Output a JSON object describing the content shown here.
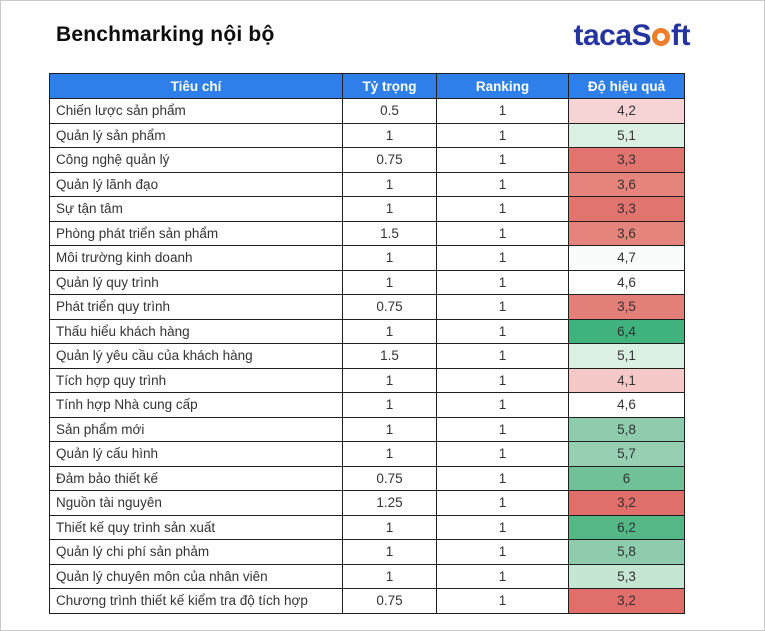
{
  "page": {
    "title": "Benchmarking nội bộ"
  },
  "logo": {
    "text_before_o": "tacaS",
    "text_after_o": "ft",
    "navy_color": "#25349E",
    "orange_color": "#EE7D2E"
  },
  "table": {
    "header_bg": "#2E7FE9",
    "headers": [
      "Tiêu chí",
      "Tỷ trọng",
      "Ranking",
      "Độ hiệu quả"
    ],
    "rows": [
      {
        "criteria": "Chiến lược sản phẩm",
        "weight": "0.5",
        "ranking": "1",
        "effectiveness": "4,2",
        "eff_color": "#F6D4D6"
      },
      {
        "criteria": "Quản lý sản phẩm",
        "weight": "1",
        "ranking": "1",
        "effectiveness": "5,1",
        "eff_color": "#DBF0E3"
      },
      {
        "criteria": "Công nghệ quản lý",
        "weight": "0.75",
        "ranking": "1",
        "effectiveness": "3,3",
        "eff_color": "#E1746F"
      },
      {
        "criteria": "Quản lý lãnh đạo",
        "weight": "1",
        "ranking": "1",
        "effectiveness": "3,6",
        "eff_color": "#E4847C"
      },
      {
        "criteria": "Sự tận tâm",
        "weight": "1",
        "ranking": "1",
        "effectiveness": "3,3",
        "eff_color": "#E1746F"
      },
      {
        "criteria": "Phòng phát triển sản phẩm",
        "weight": "1.5",
        "ranking": "1",
        "effectiveness": "3,6",
        "eff_color": "#E4847C"
      },
      {
        "criteria": "Môi trường kinh doanh",
        "weight": "1",
        "ranking": "1",
        "effectiveness": "4,7",
        "eff_color": "#F9FCFB"
      },
      {
        "criteria": "Quản lý quy trình",
        "weight": "1",
        "ranking": "1",
        "effectiveness": "4,6",
        "eff_color": "#FFFFFF"
      },
      {
        "criteria": "Phát triển quy trình",
        "weight": "0.75",
        "ranking": "1",
        "effectiveness": "3,5",
        "eff_color": "#E37F79"
      },
      {
        "criteria": "Thấu hiểu khách hàng",
        "weight": "1",
        "ranking": "1",
        "effectiveness": "6,4",
        "eff_color": "#3FB27D"
      },
      {
        "criteria": "Quản lý yêu cầu của khách hàng",
        "weight": "1.5",
        "ranking": "1",
        "effectiveness": "5,1",
        "eff_color": "#DBF0E3"
      },
      {
        "criteria": "Tích hợp quy trình",
        "weight": "1",
        "ranking": "1",
        "effectiveness": "4,1",
        "eff_color": "#F5C9C8"
      },
      {
        "criteria": "Tính hợp Nhà cung cấp",
        "weight": "1",
        "ranking": "1",
        "effectiveness": "4,6",
        "eff_color": "#FFFFFF"
      },
      {
        "criteria": "Sản phẩm mới",
        "weight": "1",
        "ranking": "1",
        "effectiveness": "5,8",
        "eff_color": "#8FCBAD"
      },
      {
        "criteria": "Quản lý cấu hình",
        "weight": "1",
        "ranking": "1",
        "effectiveness": "5,7",
        "eff_color": "#97CFB2"
      },
      {
        "criteria": "Đảm bảo thiết kế",
        "weight": "0.75",
        "ranking": "1",
        "effectiveness": "6",
        "eff_color": "#70C098"
      },
      {
        "criteria": "Nguồn tài nguyên",
        "weight": "1.25",
        "ranking": "1",
        "effectiveness": "3,2",
        "eff_color": "#E06E6A"
      },
      {
        "criteria": "Thiết kế quy trình sản xuất",
        "weight": "1",
        "ranking": "1",
        "effectiveness": "6,2",
        "eff_color": "#54B886"
      },
      {
        "criteria": "Quản lý chi phí sản phảm",
        "weight": "1",
        "ranking": "1",
        "effectiveness": "5,8",
        "eff_color": "#8FCBAD"
      },
      {
        "criteria": "Quản lý chuyên môn của nhân viên",
        "weight": "1",
        "ranking": "1",
        "effectiveness": "5,3",
        "eff_color": "#C4E6D3"
      },
      {
        "criteria": "Chương trình thiết kế kiểm tra độ tích hợp",
        "weight": "0.75",
        "ranking": "1",
        "effectiveness": "3,2",
        "eff_color": "#E06E6A"
      }
    ]
  }
}
